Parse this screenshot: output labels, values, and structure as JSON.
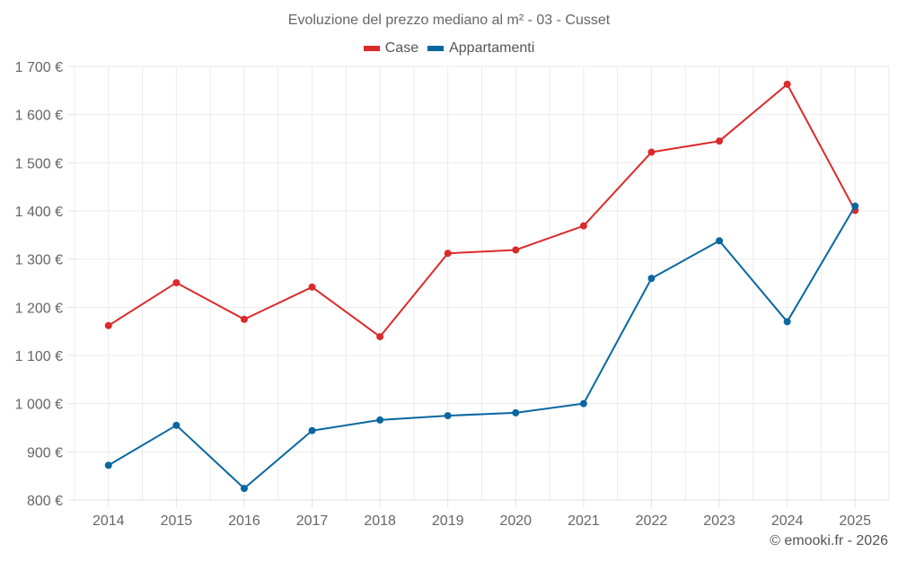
{
  "chart_data": {
    "type": "line",
    "title": "Evoluzione del prezzo mediano al m² - 03 - Cusset",
    "xlabel": "",
    "ylabel": "",
    "categories": [
      "2014",
      "2015",
      "2016",
      "2017",
      "2018",
      "2019",
      "2020",
      "2021",
      "2022",
      "2023",
      "2024",
      "2025"
    ],
    "series": [
      {
        "name": "Case",
        "color": "#dc2a2a",
        "values": [
          1162,
          1251,
          1175,
          1242,
          1139,
          1312,
          1319,
          1369,
          1522,
          1545,
          1663,
          1401
        ]
      },
      {
        "name": "Appartamenti",
        "color": "#0867a0",
        "values": [
          872,
          955,
          824,
          944,
          966,
          975,
          981,
          1000,
          1260,
          1338,
          1170,
          1410
        ]
      }
    ],
    "ylim": [
      800,
      1700
    ],
    "yticks": [
      800,
      900,
      1000,
      1100,
      1200,
      1300,
      1400,
      1500,
      1600,
      1700
    ],
    "ytick_labels": [
      "800 €",
      "900 €",
      "1 000 €",
      "1 100 €",
      "1 200 €",
      "1 300 €",
      "1 400 €",
      "1 500 €",
      "1 600 €",
      "1 700 €"
    ],
    "grid": true,
    "legend_position": "top-center"
  },
  "footer": {
    "credit": "© emooki.fr - 2026"
  }
}
